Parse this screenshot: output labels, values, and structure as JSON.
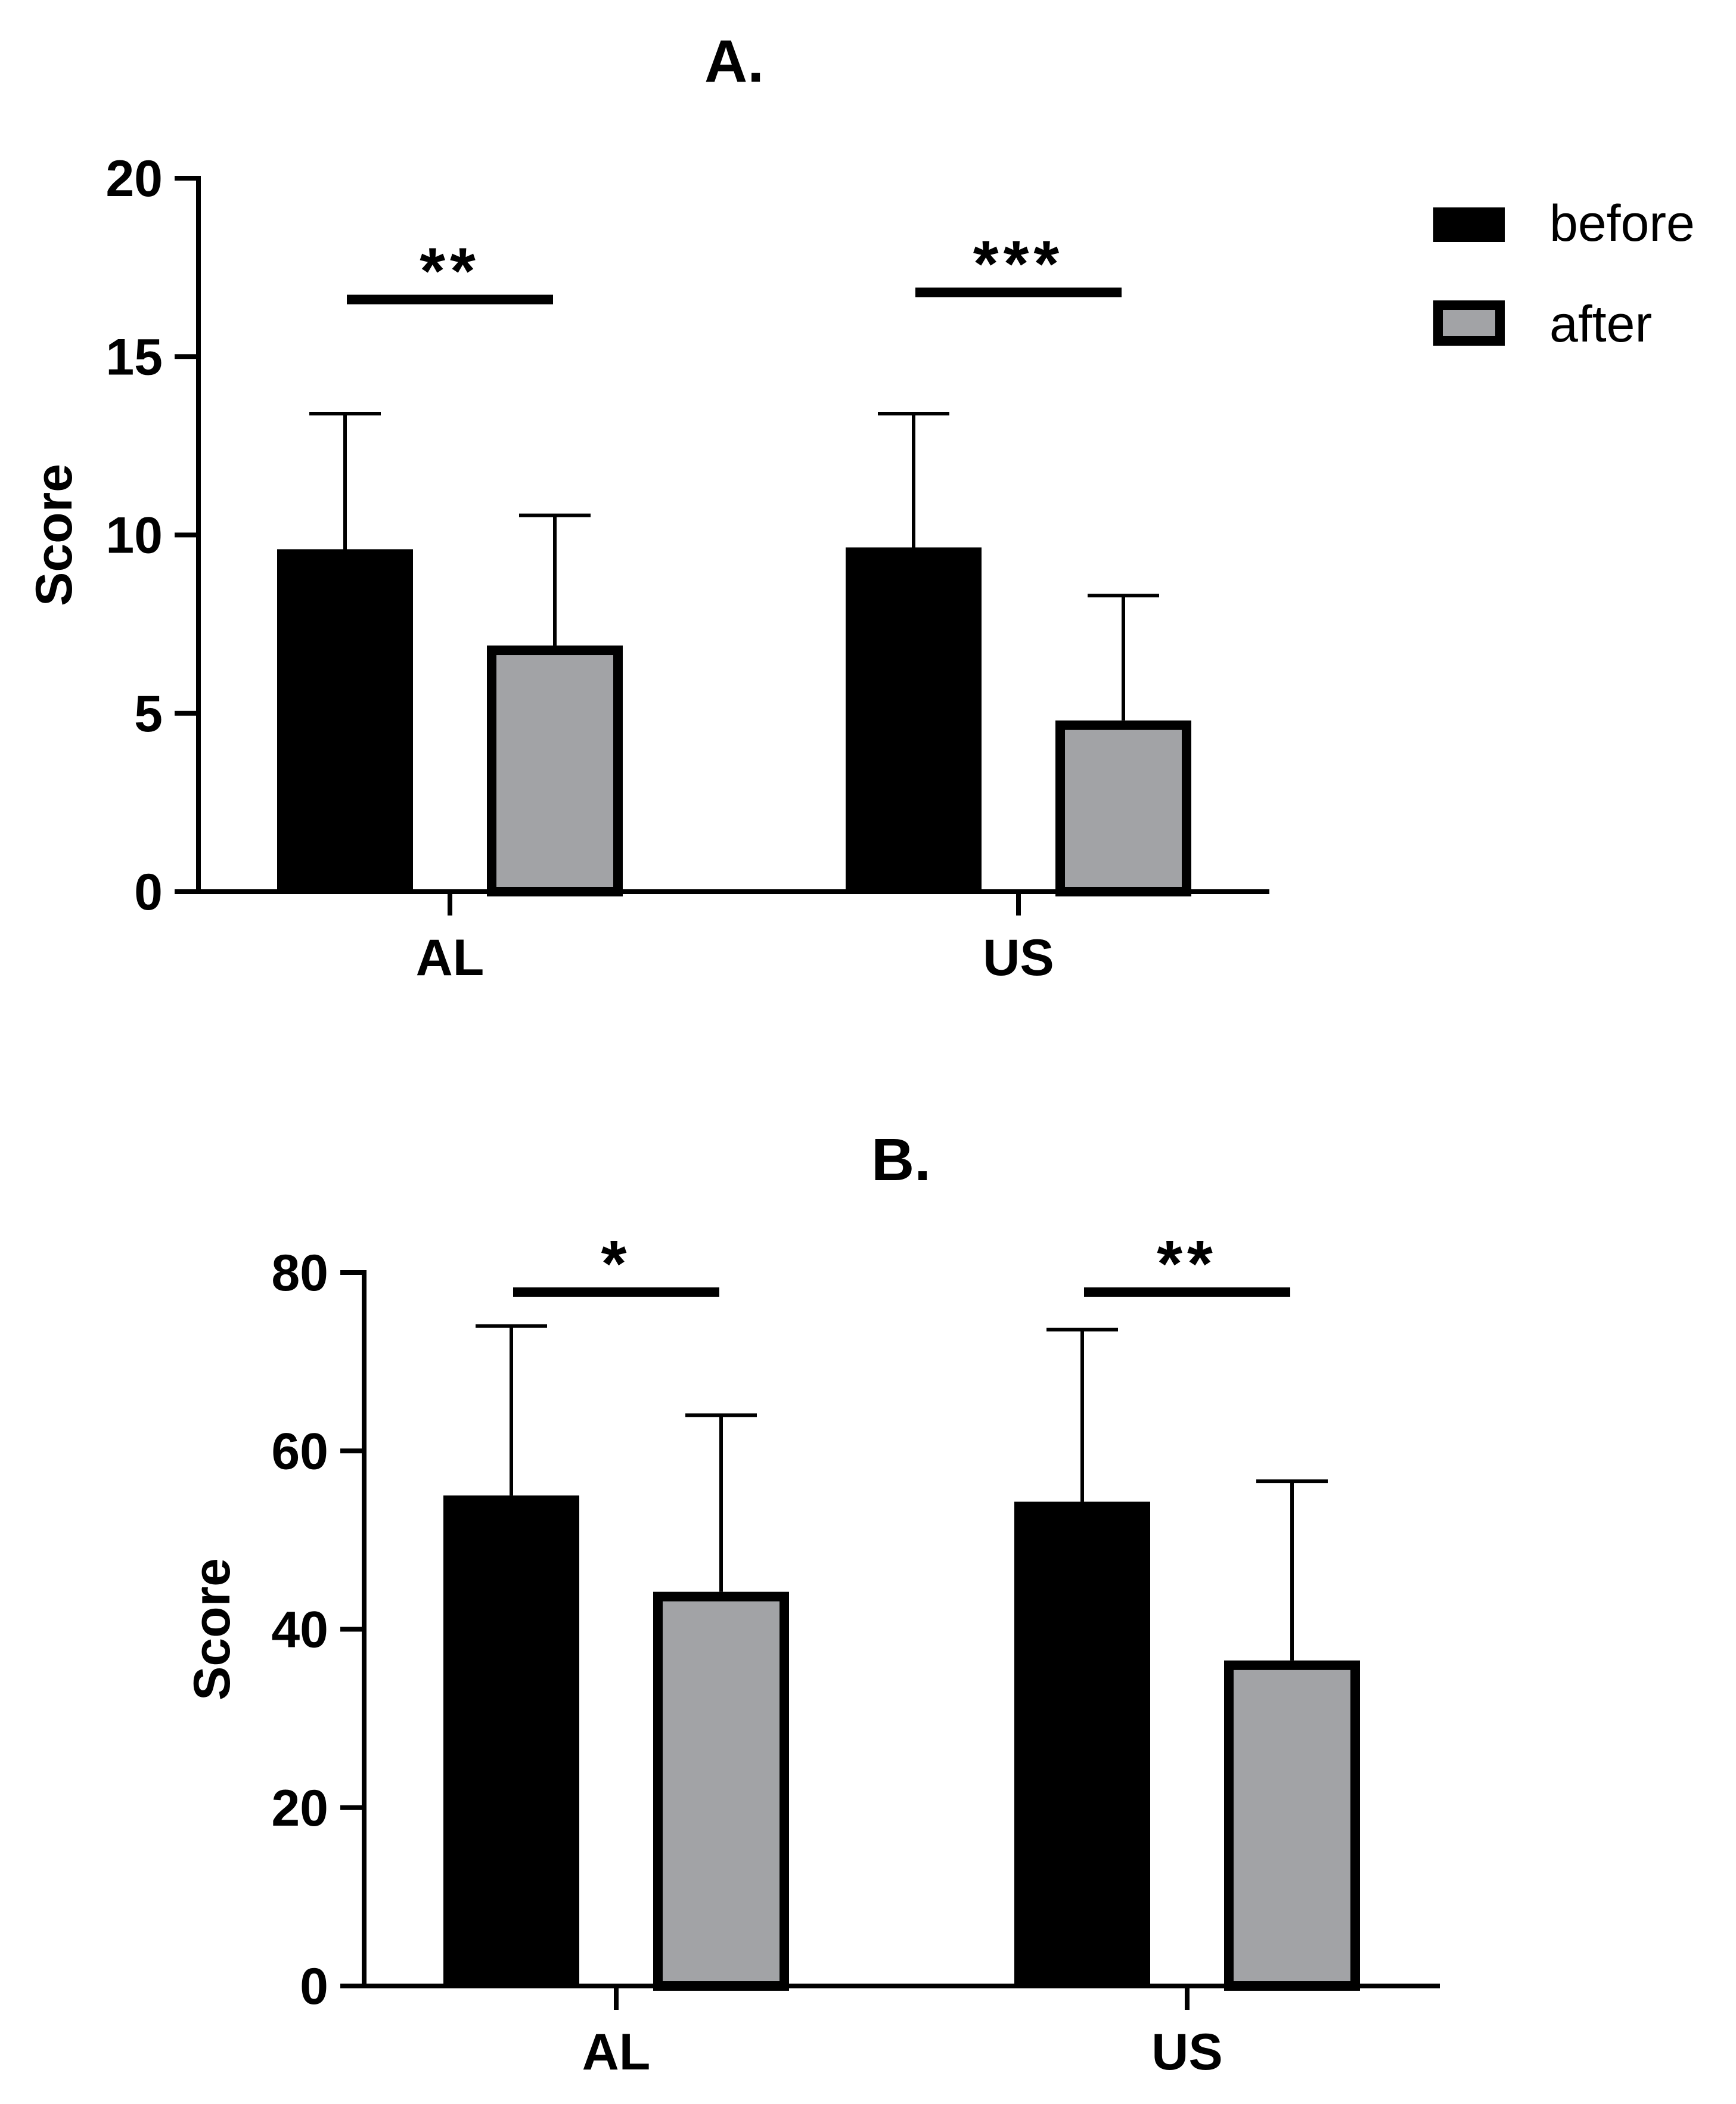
{
  "colors": {
    "before": "#000000",
    "after": "#a2a3a6",
    "axis": "#000000"
  },
  "legend": [
    {
      "key": "before",
      "label": "before"
    },
    {
      "key": "after",
      "label": "after"
    }
  ],
  "chart_data": [
    {
      "type": "bar",
      "title": "A.",
      "xlabel": "",
      "ylabel": "Score",
      "ylim": [
        0,
        20
      ],
      "yticks": [
        0,
        5,
        10,
        15,
        20
      ],
      "categories": [
        "AL",
        "US"
      ],
      "series": [
        {
          "name": "before",
          "values": [
            9.6,
            9.65
          ],
          "errors": [
            3.8,
            3.75
          ]
        },
        {
          "name": "after",
          "values": [
            6.9,
            4.8
          ],
          "errors": [
            3.65,
            3.5
          ]
        }
      ],
      "significance": [
        {
          "category": "AL",
          "label": "**",
          "y": 16.6
        },
        {
          "category": "US",
          "label": "***",
          "y": 16.8
        }
      ]
    },
    {
      "type": "bar",
      "title": "B.",
      "xlabel": "",
      "ylabel": "Score",
      "ylim": [
        0,
        80
      ],
      "yticks": [
        0,
        20,
        40,
        60,
        80
      ],
      "categories": [
        "AL",
        "US"
      ],
      "series": [
        {
          "name": "before",
          "values": [
            55,
            54.3
          ],
          "errors": [
            19,
            19.3
          ]
        },
        {
          "name": "after",
          "values": [
            44.2,
            36.5
          ],
          "errors": [
            19.8,
            20.1
          ]
        }
      ],
      "significance": [
        {
          "category": "AL",
          "label": "*",
          "y": 77.8
        },
        {
          "category": "US",
          "label": "**",
          "y": 77.8
        }
      ]
    }
  ]
}
